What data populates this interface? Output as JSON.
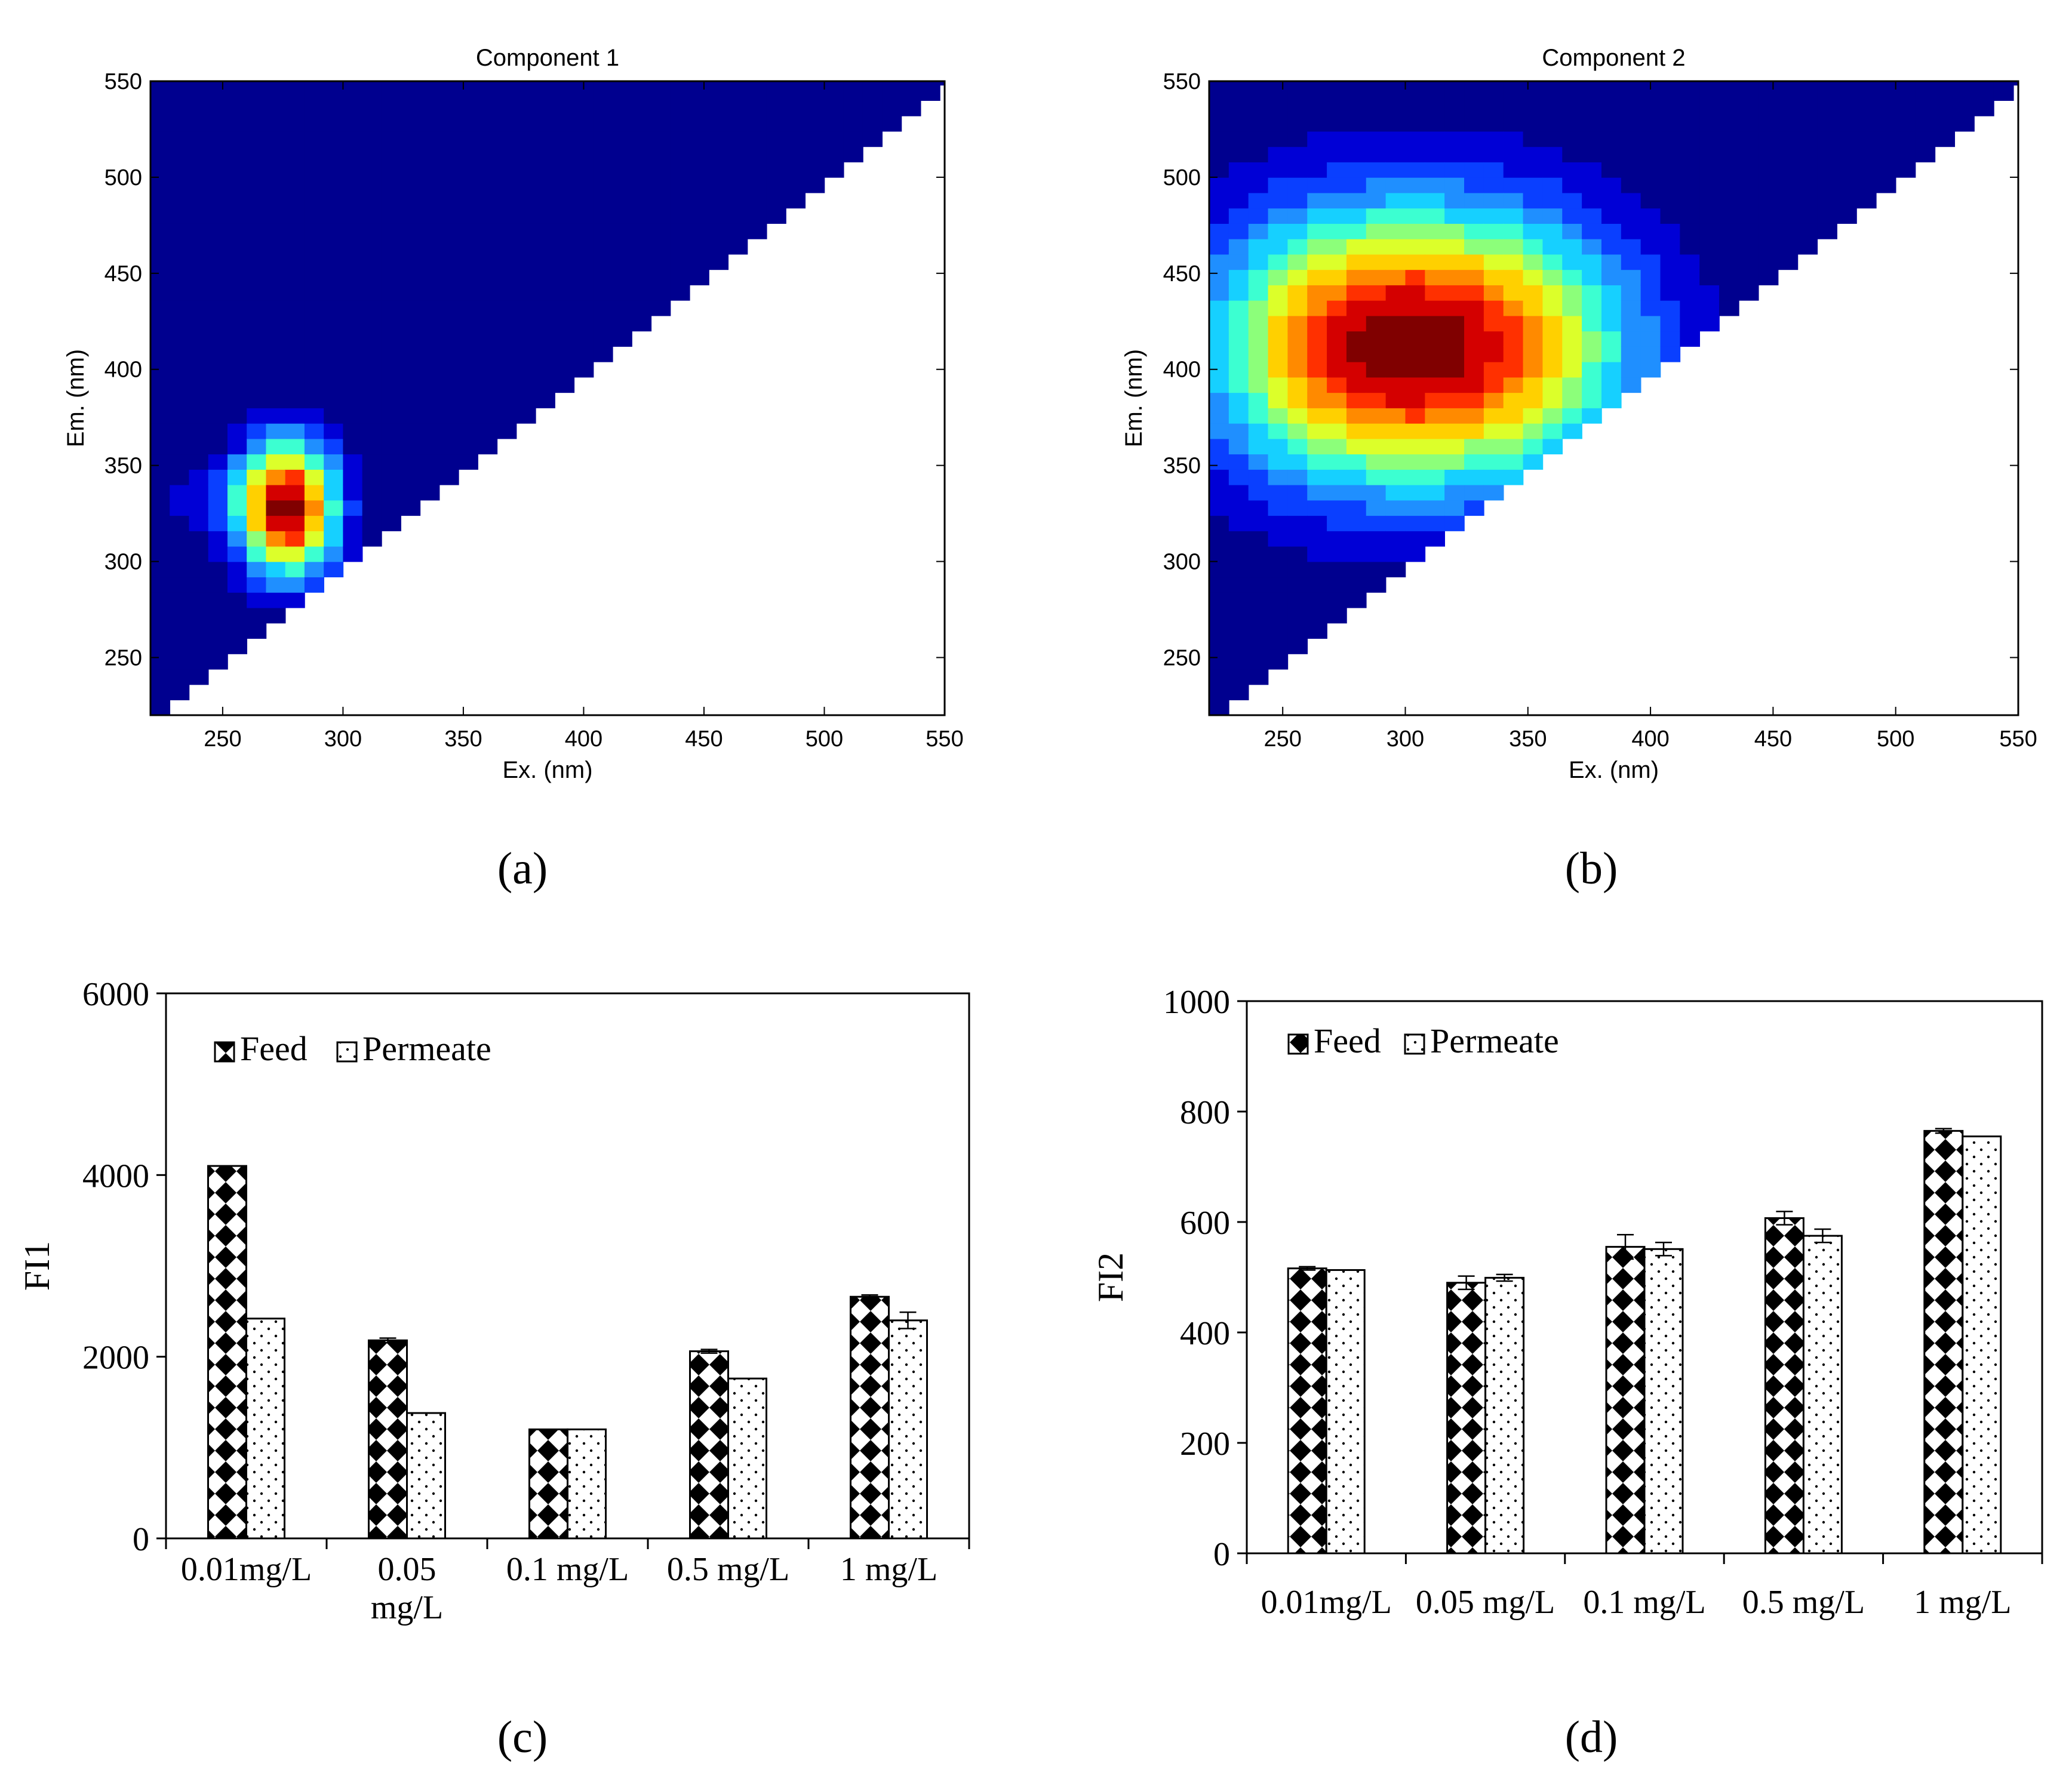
{
  "colors": {
    "background": "#ffffff",
    "contour_levels": [
      "#00008f",
      "#0000d6",
      "#0a3fff",
      "#1f8fff",
      "#16d0ff",
      "#3cffd1",
      "#8cff7a",
      "#dcff2a",
      "#ffd000",
      "#ff8a00",
      "#ff3000",
      "#d40000",
      "#800000"
    ],
    "bar_border": "#000000"
  },
  "chart_data": [
    {
      "panel": "(a)",
      "type": "contour",
      "title": "Component 1",
      "xlabel": "Ex. (nm)",
      "ylabel": "Em. (nm)",
      "xlim": [
        220,
        550
      ],
      "ylim": [
        220,
        550
      ],
      "xticks": [
        250,
        300,
        350,
        400,
        450,
        500,
        550
      ],
      "yticks": [
        250,
        300,
        350,
        400,
        450,
        500,
        550
      ],
      "masked_region": "Em < Ex (white triangle, lower right)",
      "peaks": [
        {
          "ex": 277,
          "em": 328,
          "sigma_ex": 14,
          "sigma_em": 24
        }
      ],
      "shoulders": [
        {
          "ex": 245,
          "em": 332,
          "sigma_ex": 14,
          "sigma_em": 16,
          "rel": 0.12
        }
      ]
    },
    {
      "panel": "(b)",
      "type": "contour",
      "title": "Component 2",
      "xlabel": "Ex. (nm)",
      "ylabel": "Em. (nm)",
      "xlim": [
        220,
        550
      ],
      "ylim": [
        220,
        550
      ],
      "xticks": [
        250,
        300,
        350,
        400,
        450,
        500,
        550
      ],
      "yticks": [
        250,
        300,
        350,
        400,
        450,
        500,
        550
      ],
      "masked_region": "Em < Ex (white triangle, lower right)",
      "peaks": [
        {
          "ex": 333,
          "em": 412,
          "sigma_ex": 45,
          "sigma_em": 50,
          "rel": 1.0
        },
        {
          "ex": 270,
          "em": 412,
          "sigma_ex": 40,
          "sigma_em": 50,
          "rel": 0.84
        }
      ]
    },
    {
      "panel": "(c)",
      "type": "bar",
      "ylabel": "FI1",
      "ylim": [
        0,
        6000
      ],
      "yticks": [
        0,
        2000,
        4000,
        6000
      ],
      "legend_location": "top-left",
      "categories": [
        [
          "0.01mg/L"
        ],
        [
          "0.05",
          "mg/L"
        ],
        [
          "0.1 mg/L"
        ],
        [
          "0.5 mg/L"
        ],
        [
          "1 mg/L"
        ]
      ],
      "series": [
        {
          "name": "Feed",
          "pattern": "checker",
          "values": [
            4100,
            2180,
            1200,
            2060,
            2660
          ],
          "errors": [
            0,
            25,
            0,
            20,
            20
          ]
        },
        {
          "name": "Permeate",
          "pattern": "dots",
          "values": [
            2420,
            1380,
            1200,
            1760,
            2400
          ],
          "errors": [
            0,
            0,
            0,
            0,
            90
          ]
        }
      ]
    },
    {
      "panel": "(d)",
      "type": "bar",
      "ylabel": "FI2",
      "ylim": [
        0,
        1000
      ],
      "yticks": [
        0,
        200,
        400,
        600,
        800,
        1000
      ],
      "legend_location": "top-left",
      "categories": [
        [
          "0.01mg/L"
        ],
        [
          "0.05 mg/L"
        ],
        [
          "0.1 mg/L"
        ],
        [
          "0.5 mg/L"
        ],
        [
          "1 mg/L"
        ]
      ],
      "series": [
        {
          "name": "Feed",
          "pattern": "checker",
          "values": [
            516,
            490,
            555,
            607,
            765
          ],
          "errors": [
            3,
            12,
            22,
            12,
            4
          ]
        },
        {
          "name": "Permeate",
          "pattern": "dots",
          "values": [
            513,
            499,
            551,
            575,
            755
          ],
          "errors": [
            0,
            6,
            12,
            12,
            0
          ]
        }
      ]
    }
  ],
  "captions": [
    "(a)",
    "(b)",
    "(c)",
    "(d)"
  ]
}
